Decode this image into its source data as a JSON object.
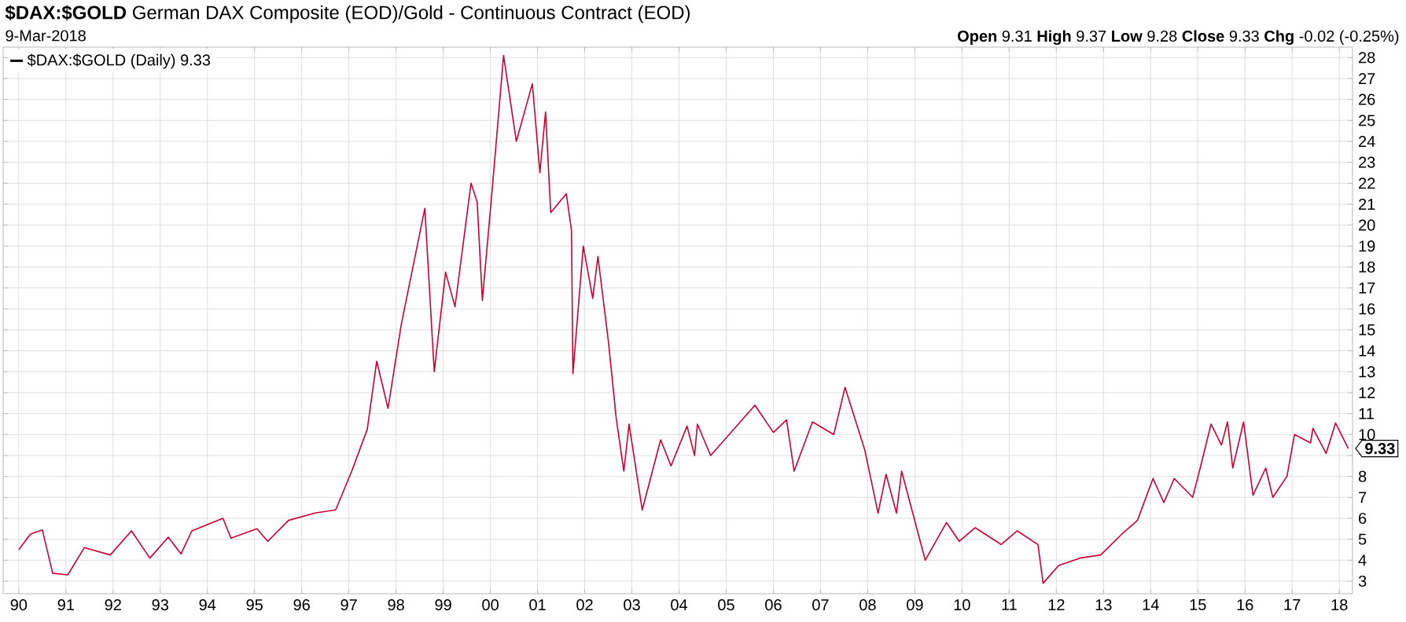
{
  "chart_data": {
    "type": "line",
    "title": "**$DAX:$GOLD** German DAX Composite (EOD)/Gold - Continuous Contract (EOD)",
    "subtitle": "9-Mar-2018",
    "annotations": [
      "**Open** 9.31 **High** 9.37 **Low** 9.28 **Close** 9.33 **Chg** -0.02 (-0.25%)",
      {
        "text": "9.33",
        "x": 2018.19,
        "y": 9.33
      }
    ],
    "x": [
      1990.0,
      1990.25,
      1990.5,
      1990.72,
      1991.04,
      1991.39,
      1991.94,
      1992.39,
      1992.78,
      1993.17,
      1993.44,
      1993.67,
      1994.33,
      1994.5,
      1995.05,
      1995.28,
      1995.72,
      1996.28,
      1996.72,
      1997.06,
      1997.39,
      1997.59,
      1997.83,
      1998.11,
      1998.61,
      1998.81,
      1999.05,
      1999.25,
      1999.59,
      1999.72,
      1999.83,
      2000.05,
      2000.28,
      2000.55,
      2000.89,
      2001.05,
      2001.17,
      2001.28,
      2001.61,
      2001.72,
      2001.75,
      2001.97,
      2002.17,
      2002.28,
      2002.5,
      2002.67,
      2002.83,
      2002.94,
      2003.22,
      2003.61,
      2003.83,
      2004.17,
      2004.33,
      2004.39,
      2004.67,
      2005.61,
      2006.0,
      2006.28,
      2006.44,
      2006.83,
      2007.28,
      2007.52,
      2007.94,
      2008.22,
      2008.39,
      2008.61,
      2008.72,
      2009.22,
      2009.67,
      2009.94,
      2010.28,
      2010.83,
      2011.17,
      2011.61,
      2011.72,
      2012.05,
      2012.5,
      2012.94,
      2013.39,
      2013.72,
      2014.05,
      2014.28,
      2014.5,
      2014.89,
      2015.05,
      2015.28,
      2015.5,
      2015.63,
      2015.74,
      2015.97,
      2016.17,
      2016.44,
      2016.59,
      2016.89,
      2017.05,
      2017.39,
      2017.44,
      2017.72,
      2017.92,
      2018.19
    ],
    "series": [
      {
        "name": "$DAX:$GOLD (Daily) 9.33",
        "color": "#cc0033",
        "values": [
          4.5,
          5.25,
          5.45,
          3.38,
          3.3,
          4.6,
          4.25,
          5.4,
          4.1,
          5.1,
          4.3,
          5.4,
          6.0,
          5.05,
          5.5,
          4.9,
          5.9,
          6.25,
          6.4,
          8.25,
          10.25,
          13.5,
          11.25,
          15.25,
          20.8,
          13.0,
          17.75,
          16.1,
          22.0,
          21.1,
          16.4,
          22.0,
          28.1,
          24.0,
          26.75,
          22.5,
          25.4,
          20.6,
          21.5,
          19.75,
          12.9,
          19.0,
          16.5,
          18.5,
          14.5,
          10.75,
          8.25,
          10.5,
          6.4,
          9.75,
          8.5,
          10.4,
          9.0,
          10.5,
          9.0,
          11.4,
          10.1,
          10.7,
          8.25,
          10.6,
          10.0,
          12.25,
          9.25,
          6.25,
          8.1,
          6.25,
          8.25,
          4.0,
          5.8,
          4.9,
          5.55,
          4.75,
          5.4,
          4.75,
          2.9,
          3.75,
          4.1,
          4.25,
          5.25,
          5.9,
          7.9,
          6.75,
          7.9,
          7.0,
          8.4,
          10.5,
          9.5,
          10.6,
          8.4,
          10.6,
          7.1,
          8.4,
          7.0,
          8.0,
          10.0,
          9.6,
          10.3,
          9.1,
          10.55,
          9.33
        ]
      }
    ],
    "xlim": [
      1989.67,
      2018.28
    ],
    "ylim": [
      2.4,
      28.5
    ],
    "xticks": [
      {
        "value": 1990,
        "label": "90"
      },
      {
        "value": 1991,
        "label": "91"
      },
      {
        "value": 1992,
        "label": "92"
      },
      {
        "value": 1993,
        "label": "93"
      },
      {
        "value": 1994,
        "label": "94"
      },
      {
        "value": 1995,
        "label": "95"
      },
      {
        "value": 1996,
        "label": "96"
      },
      {
        "value": 1997,
        "label": "97"
      },
      {
        "value": 1998,
        "label": "98"
      },
      {
        "value": 1999,
        "label": "99"
      },
      {
        "value": 2000,
        "label": "00"
      },
      {
        "value": 2001,
        "label": "01"
      },
      {
        "value": 2002,
        "label": "02"
      },
      {
        "value": 2003,
        "label": "03"
      },
      {
        "value": 2004,
        "label": "04"
      },
      {
        "value": 2005,
        "label": "05"
      },
      {
        "value": 2006,
        "label": "06"
      },
      {
        "value": 2007,
        "label": "07"
      },
      {
        "value": 2008,
        "label": "08"
      },
      {
        "value": 2009,
        "label": "09"
      },
      {
        "value": 2010,
        "label": "10"
      },
      {
        "value": 2011,
        "label": "11"
      },
      {
        "value": 2012,
        "label": "12"
      },
      {
        "value": 2013,
        "label": "13"
      },
      {
        "value": 2014,
        "label": "14"
      },
      {
        "value": 2015,
        "label": "15"
      },
      {
        "value": 2016,
        "label": "16"
      },
      {
        "value": 2017,
        "label": "17"
      },
      {
        "value": 2018,
        "label": "18"
      }
    ],
    "yticks": [
      3,
      4,
      5,
      6,
      7,
      8,
      {
        "value": 9,
        "label": null
      },
      10,
      11,
      12,
      13,
      14,
      15,
      16,
      17,
      18,
      19,
      20,
      21,
      22,
      23,
      24,
      25,
      26,
      27,
      28
    ],
    "grid": true,
    "legend": "top left",
    "line_style": "solid",
    "marker": "none"
  }
}
